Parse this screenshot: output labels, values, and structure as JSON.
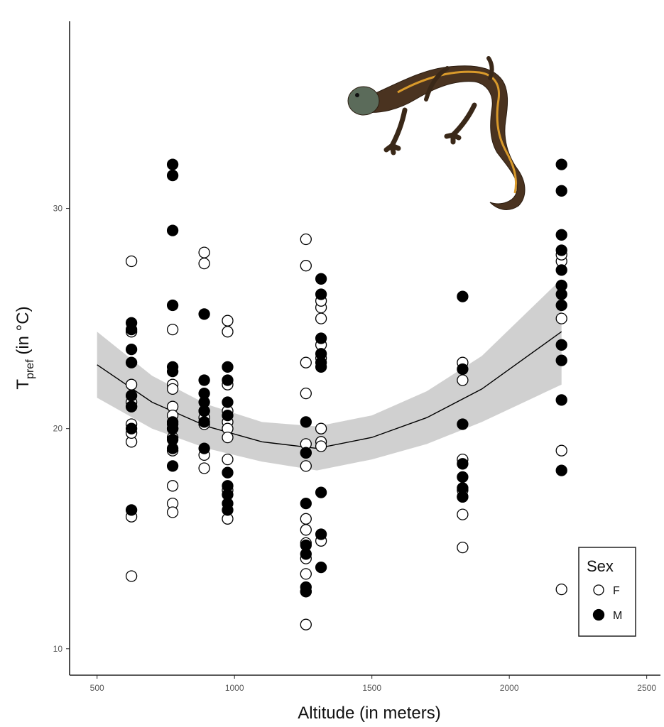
{
  "chart_data": {
    "type": "scatter",
    "title": "",
    "xlabel": "Altitude (in meters)",
    "ylabel_main": "T",
    "ylabel_sub": "pref",
    "ylabel_tail": " (in °C)",
    "xlim": [
      400,
      2550
    ],
    "ylim": [
      8.8,
      38.5
    ],
    "x_ticks": [
      500,
      1000,
      1500,
      2000,
      2500
    ],
    "x_tick_labels": [
      "500",
      "1000",
      "1500",
      "2000",
      "2500"
    ],
    "y_ticks": [
      10,
      20,
      30
    ],
    "y_tick_labels": [
      "10",
      "20",
      "30"
    ],
    "grid": false,
    "legend": {
      "title": "Sex",
      "position": "bottom-right",
      "entries": [
        {
          "label": "F",
          "fill": "#ffffff"
        },
        {
          "label": "M",
          "fill": "#000000"
        }
      ]
    },
    "series": [
      {
        "name": "F",
        "fill": "#ffffff",
        "x": [
          625,
          625,
          625,
          625,
          625,
          625,
          625,
          625,
          625,
          625,
          775,
          775,
          775,
          775,
          775,
          775,
          775,
          775,
          775,
          775,
          775,
          775,
          890,
          890,
          890,
          890,
          890,
          890,
          890,
          975,
          975,
          975,
          975,
          975,
          975,
          975,
          975,
          975,
          975,
          1260,
          1260,
          1260,
          1260,
          1260,
          1260,
          1260,
          1260,
          1260,
          1260,
          1260,
          1260,
          1260,
          1260,
          1315,
          1315,
          1315,
          1315,
          1315,
          1315,
          1315,
          1315,
          1315,
          1830,
          1830,
          1830,
          1830,
          1830,
          1830,
          1830,
          2190,
          2190,
          2190,
          2190,
          2190,
          2190
        ],
        "y": [
          27.6,
          24.4,
          22.0,
          21.2,
          20.2,
          19.4,
          16.0,
          13.3,
          21.0,
          19.8,
          24.5,
          22.0,
          21.0,
          20.6,
          20.2,
          19.6,
          19.0,
          17.4,
          16.6,
          16.2,
          21.8,
          20.0,
          28.0,
          27.5,
          20.5,
          20.2,
          18.8,
          18.2,
          20.8,
          24.9,
          24.4,
          22.0,
          20.8,
          20.3,
          20.0,
          19.6,
          18.6,
          17.2,
          15.9,
          28.6,
          27.4,
          23.0,
          21.6,
          19.3,
          18.3,
          15.9,
          15.4,
          14.8,
          14.1,
          13.4,
          12.6,
          11.1,
          18.9,
          25.5,
          25.0,
          23.8,
          23.2,
          20.0,
          19.4,
          19.2,
          14.9,
          25.8,
          23.0,
          22.2,
          18.6,
          17.2,
          16.9,
          16.1,
          14.6,
          27.6,
          26.5,
          25.0,
          19.0,
          12.7,
          27.9
        ]
      },
      {
        "name": "M",
        "fill": "#000000",
        "x": [
          625,
          625,
          625,
          625,
          625,
          625,
          625,
          625,
          775,
          775,
          775,
          775,
          775,
          775,
          775,
          775,
          775,
          775,
          775,
          890,
          890,
          890,
          890,
          890,
          890,
          890,
          975,
          975,
          975,
          975,
          975,
          975,
          975,
          975,
          975,
          1260,
          1260,
          1260,
          1260,
          1260,
          1260,
          1260,
          1315,
          1315,
          1315,
          1315,
          1315,
          1315,
          1315,
          1315,
          1315,
          1830,
          1830,
          1830,
          1830,
          1830,
          1830,
          1830,
          2190,
          2190,
          2190,
          2190,
          2190,
          2190,
          2190,
          2190,
          2190,
          2190,
          2190,
          2190
        ],
        "y": [
          24.8,
          24.5,
          23.6,
          23.0,
          21.5,
          21.0,
          20.0,
          16.3,
          32.0,
          31.5,
          29.0,
          25.6,
          22.8,
          20.3,
          20.0,
          19.5,
          19.1,
          18.3,
          22.6,
          25.2,
          22.2,
          21.6,
          21.2,
          20.8,
          20.3,
          19.1,
          22.8,
          22.2,
          21.2,
          20.6,
          17.4,
          17.0,
          16.6,
          16.3,
          18.0,
          20.3,
          18.9,
          16.6,
          14.7,
          14.3,
          12.8,
          12.6,
          26.8,
          26.1,
          24.1,
          23.4,
          23.0,
          22.8,
          17.1,
          15.2,
          13.7,
          26.0,
          22.7,
          20.2,
          18.4,
          17.8,
          17.3,
          16.9,
          32.0,
          30.8,
          28.8,
          28.1,
          27.2,
          26.5,
          26.1,
          25.6,
          23.8,
          23.1,
          21.3,
          18.1
        ]
      }
    ],
    "fit": {
      "type": "quadratic",
      "x": [
        500,
        700,
        900,
        1100,
        1300,
        1500,
        1700,
        1900,
        2190
      ],
      "y": [
        22.9,
        21.2,
        20.1,
        19.4,
        19.1,
        19.6,
        20.5,
        21.8,
        24.4
      ],
      "ci_lower": [
        21.4,
        20.0,
        19.1,
        18.5,
        18.1,
        18.6,
        19.3,
        20.3,
        22.0
      ],
      "ci_upper": [
        24.4,
        22.4,
        21.1,
        20.3,
        20.1,
        20.6,
        21.7,
        23.3,
        26.8
      ]
    }
  },
  "colors": {
    "point_outline": "#000000",
    "fit_line": "#000000",
    "ci_band": "#c8c8c8",
    "axis": "#222222",
    "newt_body": "#4a3320",
    "newt_stripe": "#d99a2b",
    "newt_belly": "#c98a3a"
  },
  "decorations": {
    "image_icon": "newt-illustration"
  }
}
